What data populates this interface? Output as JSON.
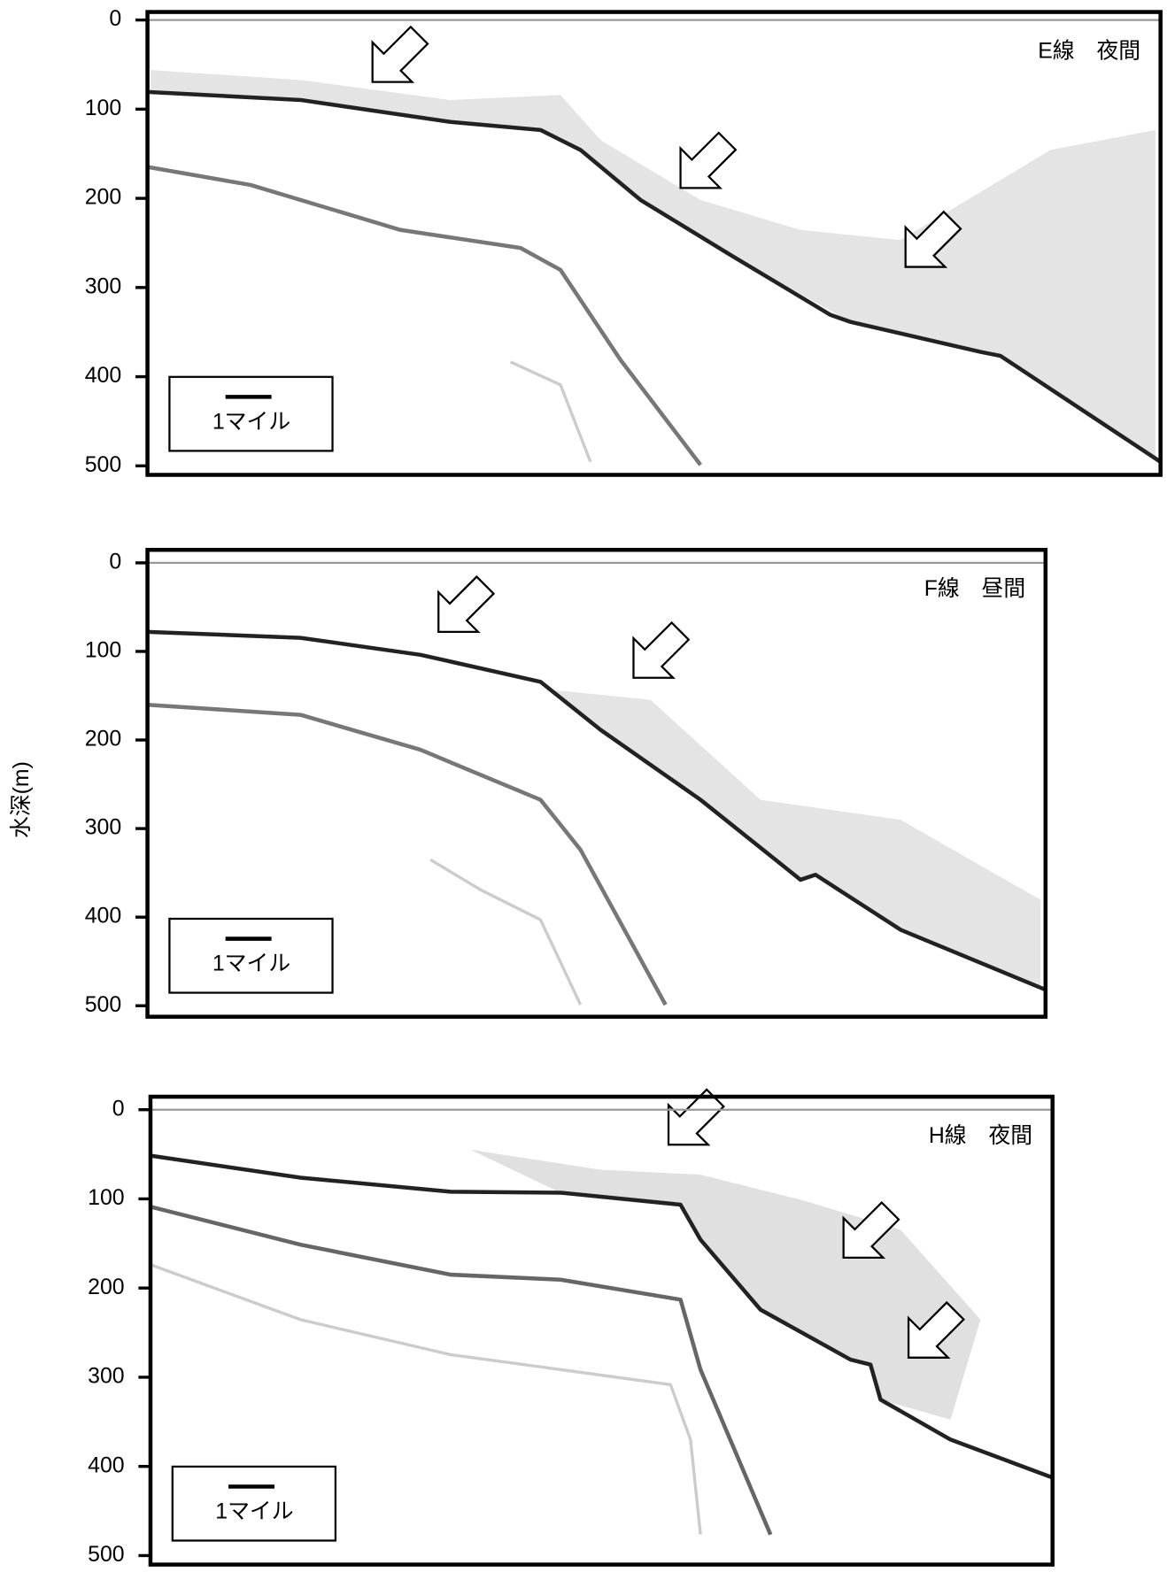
{
  "axis_label": "水深(m)",
  "chart_data": [
    {
      "type": "echogram",
      "title": "E線　夜間",
      "scale_label": "1マイル",
      "ylim": [
        0,
        500
      ],
      "yticks": [
        0,
        100,
        200,
        300,
        400,
        500
      ]
    },
    {
      "type": "echogram",
      "title": "F線　昼間",
      "scale_label": "1マイル",
      "ylim": [
        0,
        500
      ],
      "yticks": [
        0,
        100,
        200,
        300,
        400,
        500
      ]
    },
    {
      "type": "echogram",
      "title": "H線　夜間",
      "scale_label": "1マイル",
      "ylim": [
        0,
        500
      ],
      "yticks": [
        0,
        100,
        200,
        300,
        400,
        500
      ]
    }
  ]
}
